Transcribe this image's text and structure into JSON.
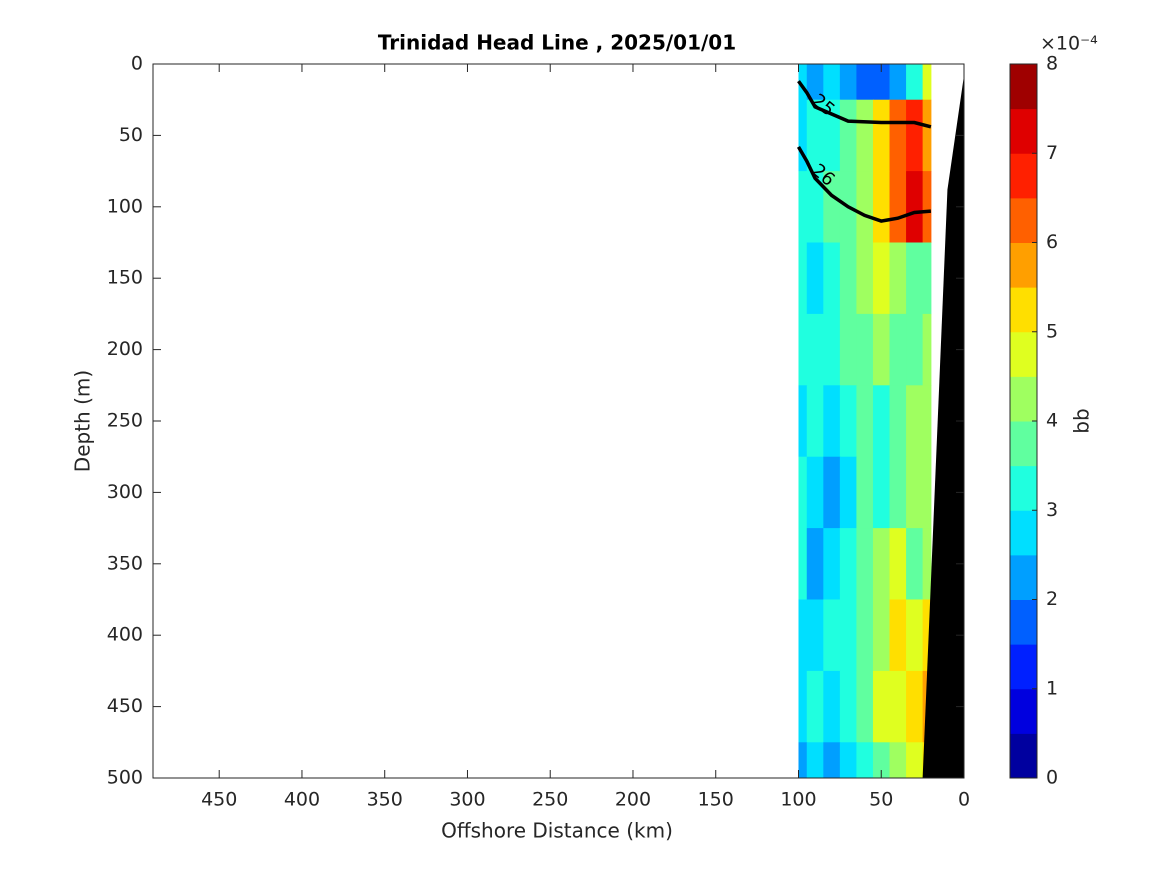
{
  "chart_data": {
    "type": "contour",
    "title": "Trinidad Head Line , 2025/01/01",
    "x_label": "Offshore Distance (km)",
    "y_label": "Depth (m)",
    "xlim": [
      490,
      0
    ],
    "ylim": [
      0,
      500
    ],
    "xticks": [
      450,
      400,
      350,
      300,
      250,
      200,
      150,
      100,
      50,
      0
    ],
    "yticks": [
      0,
      50,
      100,
      150,
      200,
      250,
      300,
      350,
      400,
      450,
      500
    ],
    "x": [
      100,
      90,
      80,
      70,
      60,
      50,
      40,
      30,
      20
    ],
    "depth": [
      0,
      50,
      100,
      150,
      200,
      250,
      300,
      350,
      400,
      450,
      500
    ],
    "values": [
      [
        2.5,
        2,
        2.5,
        2,
        1.5,
        1.5,
        2,
        3,
        4.5
      ],
      [
        2.5,
        3,
        3,
        3.5,
        4,
        5,
        6,
        6.5,
        5.5
      ],
      [
        3,
        3,
        3.5,
        3.5,
        4,
        5,
        6,
        7,
        6
      ],
      [
        3,
        2.5,
        3,
        3.5,
        4,
        4.5,
        4,
        3.5,
        3.5
      ],
      [
        3,
        3,
        3,
        3.5,
        3.5,
        4,
        3.5,
        3.5,
        4
      ],
      [
        2.5,
        3,
        2.5,
        3,
        3.5,
        3,
        3.5,
        4,
        4
      ],
      [
        3,
        2.5,
        2,
        2.5,
        3.5,
        3,
        3.5,
        4,
        4
      ],
      [
        3,
        2,
        2.5,
        3,
        3.5,
        4,
        4.5,
        3.5,
        4
      ],
      [
        2.5,
        2.5,
        3,
        3,
        3.5,
        4,
        5,
        4.5,
        5
      ],
      [
        2.5,
        3,
        2.5,
        3,
        3.5,
        4.5,
        4.5,
        5,
        5.5
      ],
      [
        2,
        2.5,
        2,
        2.5,
        3,
        3.5,
        4,
        4.5,
        5
      ]
    ],
    "contours": [
      {
        "level": 25,
        "x": [
          100,
          95,
          90,
          80,
          70,
          50,
          30,
          20
        ],
        "depth": [
          12,
          20,
          30,
          35,
          40,
          41,
          41,
          44
        ]
      },
      {
        "level": 26,
        "x": [
          100,
          95,
          90,
          80,
          70,
          60,
          50,
          40,
          30,
          20
        ],
        "depth": [
          58,
          68,
          80,
          92,
          100,
          106,
          110,
          108,
          104,
          103
        ]
      }
    ],
    "bottom": {
      "x": [
        0,
        10,
        25
      ],
      "depth": [
        8,
        88,
        500
      ],
      "color": "#000000"
    },
    "colormap": "jet",
    "clim": [
      0,
      8
    ],
    "level_step": 0.5,
    "colorbar_ticks": [
      0,
      1,
      2,
      3,
      4,
      5,
      6,
      7,
      8
    ],
    "colorbar_label": "bb",
    "colorbar_scale": "×10⁻⁴"
  }
}
